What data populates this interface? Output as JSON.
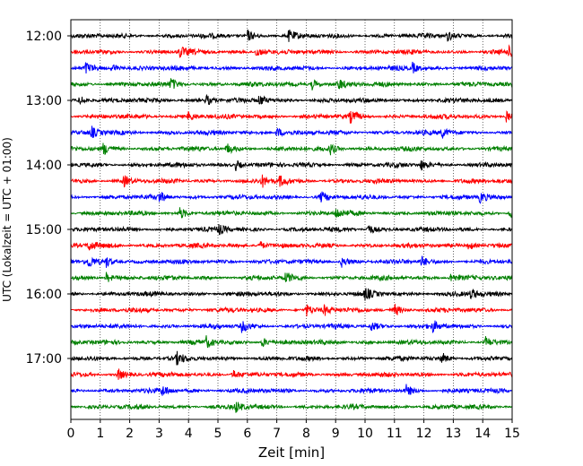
{
  "chart_data": {
    "type": "line",
    "title": "",
    "xlabel": "Zeit  [min]",
    "ylabel": "UTC (Lokalzeit = UTC + 01:00)",
    "xlim": [
      0,
      15
    ],
    "x_ticks": [
      0,
      1,
      2,
      3,
      4,
      5,
      6,
      7,
      8,
      9,
      10,
      11,
      12,
      13,
      14,
      15
    ],
    "y_tick_labels": [
      "12:00",
      "13:00",
      "14:00",
      "15:00",
      "16:00",
      "17:00"
    ],
    "y_ticks_row_index": [
      0,
      4,
      8,
      12,
      16,
      20
    ],
    "grid": "vertical dotted lines at each minute",
    "trace_colors_cycle": [
      "#000000",
      "#ff0000",
      "#0000ff",
      "#008000"
    ],
    "rows": [
      {
        "start": "12:00",
        "color": "#000000",
        "events_min": [
          6.0,
          7.4,
          12.8
        ]
      },
      {
        "start": "12:15",
        "color": "#ff0000",
        "events_min": [
          3.7,
          6.3,
          14.9
        ]
      },
      {
        "start": "12:30",
        "color": "#0000ff",
        "events_min": [
          0.5,
          1.4,
          11.6
        ]
      },
      {
        "start": "12:45",
        "color": "#008000",
        "events_min": [
          3.4,
          8.2,
          9.1
        ]
      },
      {
        "start": "13:00",
        "color": "#000000",
        "events_min": [
          0.3,
          4.6,
          6.4
        ]
      },
      {
        "start": "13:15",
        "color": "#ff0000",
        "events_min": [
          4.0,
          9.5,
          14.8
        ]
      },
      {
        "start": "13:30",
        "color": "#0000ff",
        "events_min": [
          0.7,
          7.0,
          12.6
        ]
      },
      {
        "start": "13:45",
        "color": "#008000",
        "events_min": [
          1.1,
          5.3,
          8.8
        ]
      },
      {
        "start": "14:00",
        "color": "#000000",
        "events_min": [
          5.6,
          11.9
        ]
      },
      {
        "start": "14:15",
        "color": "#ff0000",
        "events_min": [
          1.8,
          6.5,
          7.1
        ]
      },
      {
        "start": "14:30",
        "color": "#0000ff",
        "events_min": [
          3.0,
          8.5,
          13.9
        ]
      },
      {
        "start": "14:45",
        "color": "#008000",
        "events_min": [
          3.7,
          9.0,
          14.9
        ]
      },
      {
        "start": "15:00",
        "color": "#000000",
        "events_min": [
          5.0,
          10.1
        ]
      },
      {
        "start": "15:15",
        "color": "#ff0000",
        "events_min": [
          0.6,
          6.4,
          13.5
        ]
      },
      {
        "start": "15:30",
        "color": "#0000ff",
        "events_min": [
          0.6,
          1.2,
          9.2,
          11.9
        ]
      },
      {
        "start": "15:45",
        "color": "#008000",
        "events_min": [
          1.2,
          7.3,
          12.9
        ]
      },
      {
        "start": "16:00",
        "color": "#000000",
        "events_min": [
          10.0,
          13.6
        ]
      },
      {
        "start": "16:15",
        "color": "#ff0000",
        "events_min": [
          8.0,
          8.6,
          11.0
        ]
      },
      {
        "start": "16:30",
        "color": "#0000ff",
        "events_min": [
          5.8,
          10.2,
          12.3
        ]
      },
      {
        "start": "16:45",
        "color": "#008000",
        "events_min": [
          4.6,
          6.5,
          14.1
        ]
      },
      {
        "start": "17:00",
        "color": "#000000",
        "events_min": [
          3.6,
          12.6
        ]
      },
      {
        "start": "17:15",
        "color": "#ff0000",
        "events_min": [
          1.6,
          5.5
        ]
      },
      {
        "start": "17:30",
        "color": "#0000ff",
        "events_min": [
          3.1,
          11.4
        ]
      },
      {
        "start": "17:45",
        "color": "#008000",
        "events_min": [
          5.6
        ]
      }
    ]
  }
}
